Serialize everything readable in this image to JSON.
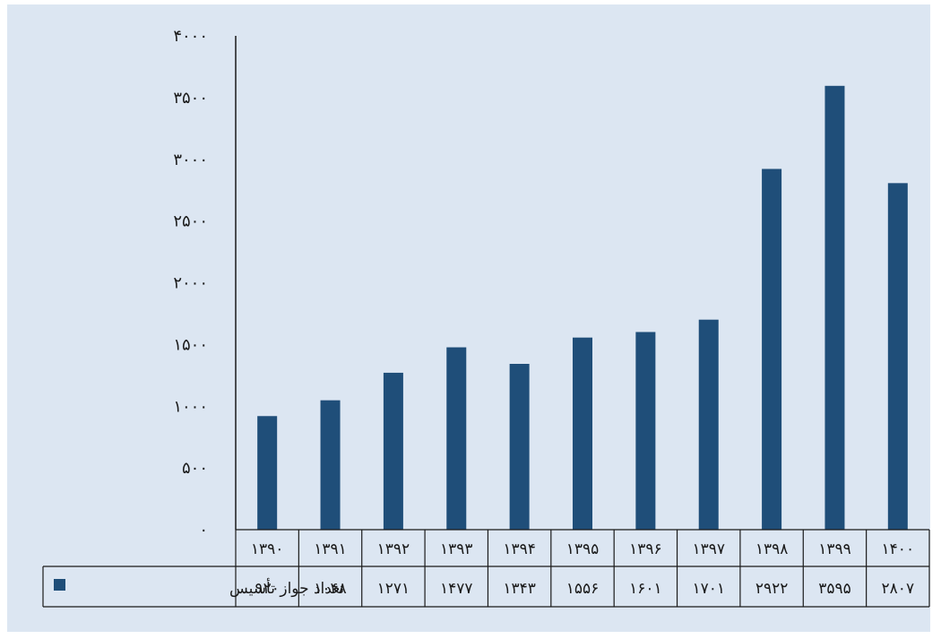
{
  "chart_data": {
    "type": "bar",
    "categories": [
      "۱۳۹۰",
      "۱۳۹۱",
      "۱۳۹۲",
      "۱۳۹۳",
      "۱۳۹۴",
      "۱۳۹۵",
      "۱۳۹۶",
      "۱۳۹۷",
      "۱۳۹۸",
      "۱۳۹۹",
      "۱۴۰۰"
    ],
    "values": [
      920,
      1048,
      1271,
      1477,
      1343,
      1556,
      1601,
      1701,
      2922,
      3595,
      2807
    ],
    "value_labels": [
      "۹۲۰",
      "۱۰۴۸",
      "۱۲۷۱",
      "۱۴۷۷",
      "۱۳۴۳",
      "۱۵۵۶",
      "۱۶۰۱",
      "۱۷۰۱",
      "۲۹۲۲",
      "۳۵۹۵",
      "۲۸۰۷"
    ],
    "series_name": "تعداد جواز تأسیس",
    "yticks": [
      "۰",
      "۵۰۰",
      "۱۰۰۰",
      "۱۵۰۰",
      "۲۰۰۰",
      "۲۵۰۰",
      "۳۰۰۰",
      "۳۵۰۰",
      "۴۰۰۰"
    ],
    "ylim": [
      0,
      4000
    ],
    "title": "",
    "xlabel": "",
    "ylabel": "",
    "grid": false,
    "legend_placement": "data-table-left",
    "colors": {
      "bar": "#1f4e79",
      "background": "#dce6f2",
      "table_line": "#1a1a1a"
    }
  }
}
